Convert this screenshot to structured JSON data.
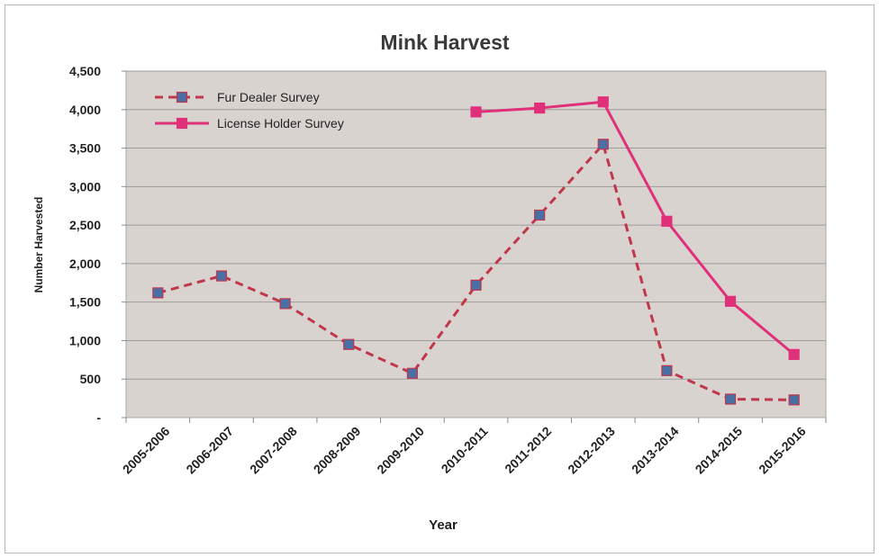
{
  "chart_data": {
    "type": "line",
    "title": "Mink Harvest",
    "xlabel": "Year",
    "ylabel": "Number Harvested",
    "categories": [
      "2005-2006",
      "2006-2007",
      "2007-2008",
      "2008-2009",
      "2009-2010",
      "2010-2011",
      "2011-2012",
      "2012-2013",
      "2013-2014",
      "2014-2015",
      "2015-2016"
    ],
    "ylim": [
      0,
      4500
    ],
    "yticks": [
      0,
      500,
      1000,
      1500,
      2000,
      2500,
      3000,
      3500,
      4000,
      4500
    ],
    "ytick_labels": [
      "-",
      "500",
      "1,000",
      "1,500",
      "2,000",
      "2,500",
      "3,000",
      "3,500",
      "4,000",
      "4,500"
    ],
    "grid": true,
    "legend_position": "top-left",
    "series": [
      {
        "name": "Fur Dealer Survey",
        "color": "#c0364a",
        "marker_color": "#4a6fa5",
        "line_style": "dashed",
        "values": [
          1620,
          1840,
          1480,
          950,
          575,
          1720,
          2630,
          3550,
          610,
          240,
          230
        ]
      },
      {
        "name": "License Holder Survey",
        "color": "#e0307a",
        "marker_color": "#e0307a",
        "line_style": "solid",
        "values": [
          null,
          null,
          null,
          null,
          null,
          3970,
          4020,
          4100,
          2550,
          1510,
          820
        ]
      }
    ]
  }
}
